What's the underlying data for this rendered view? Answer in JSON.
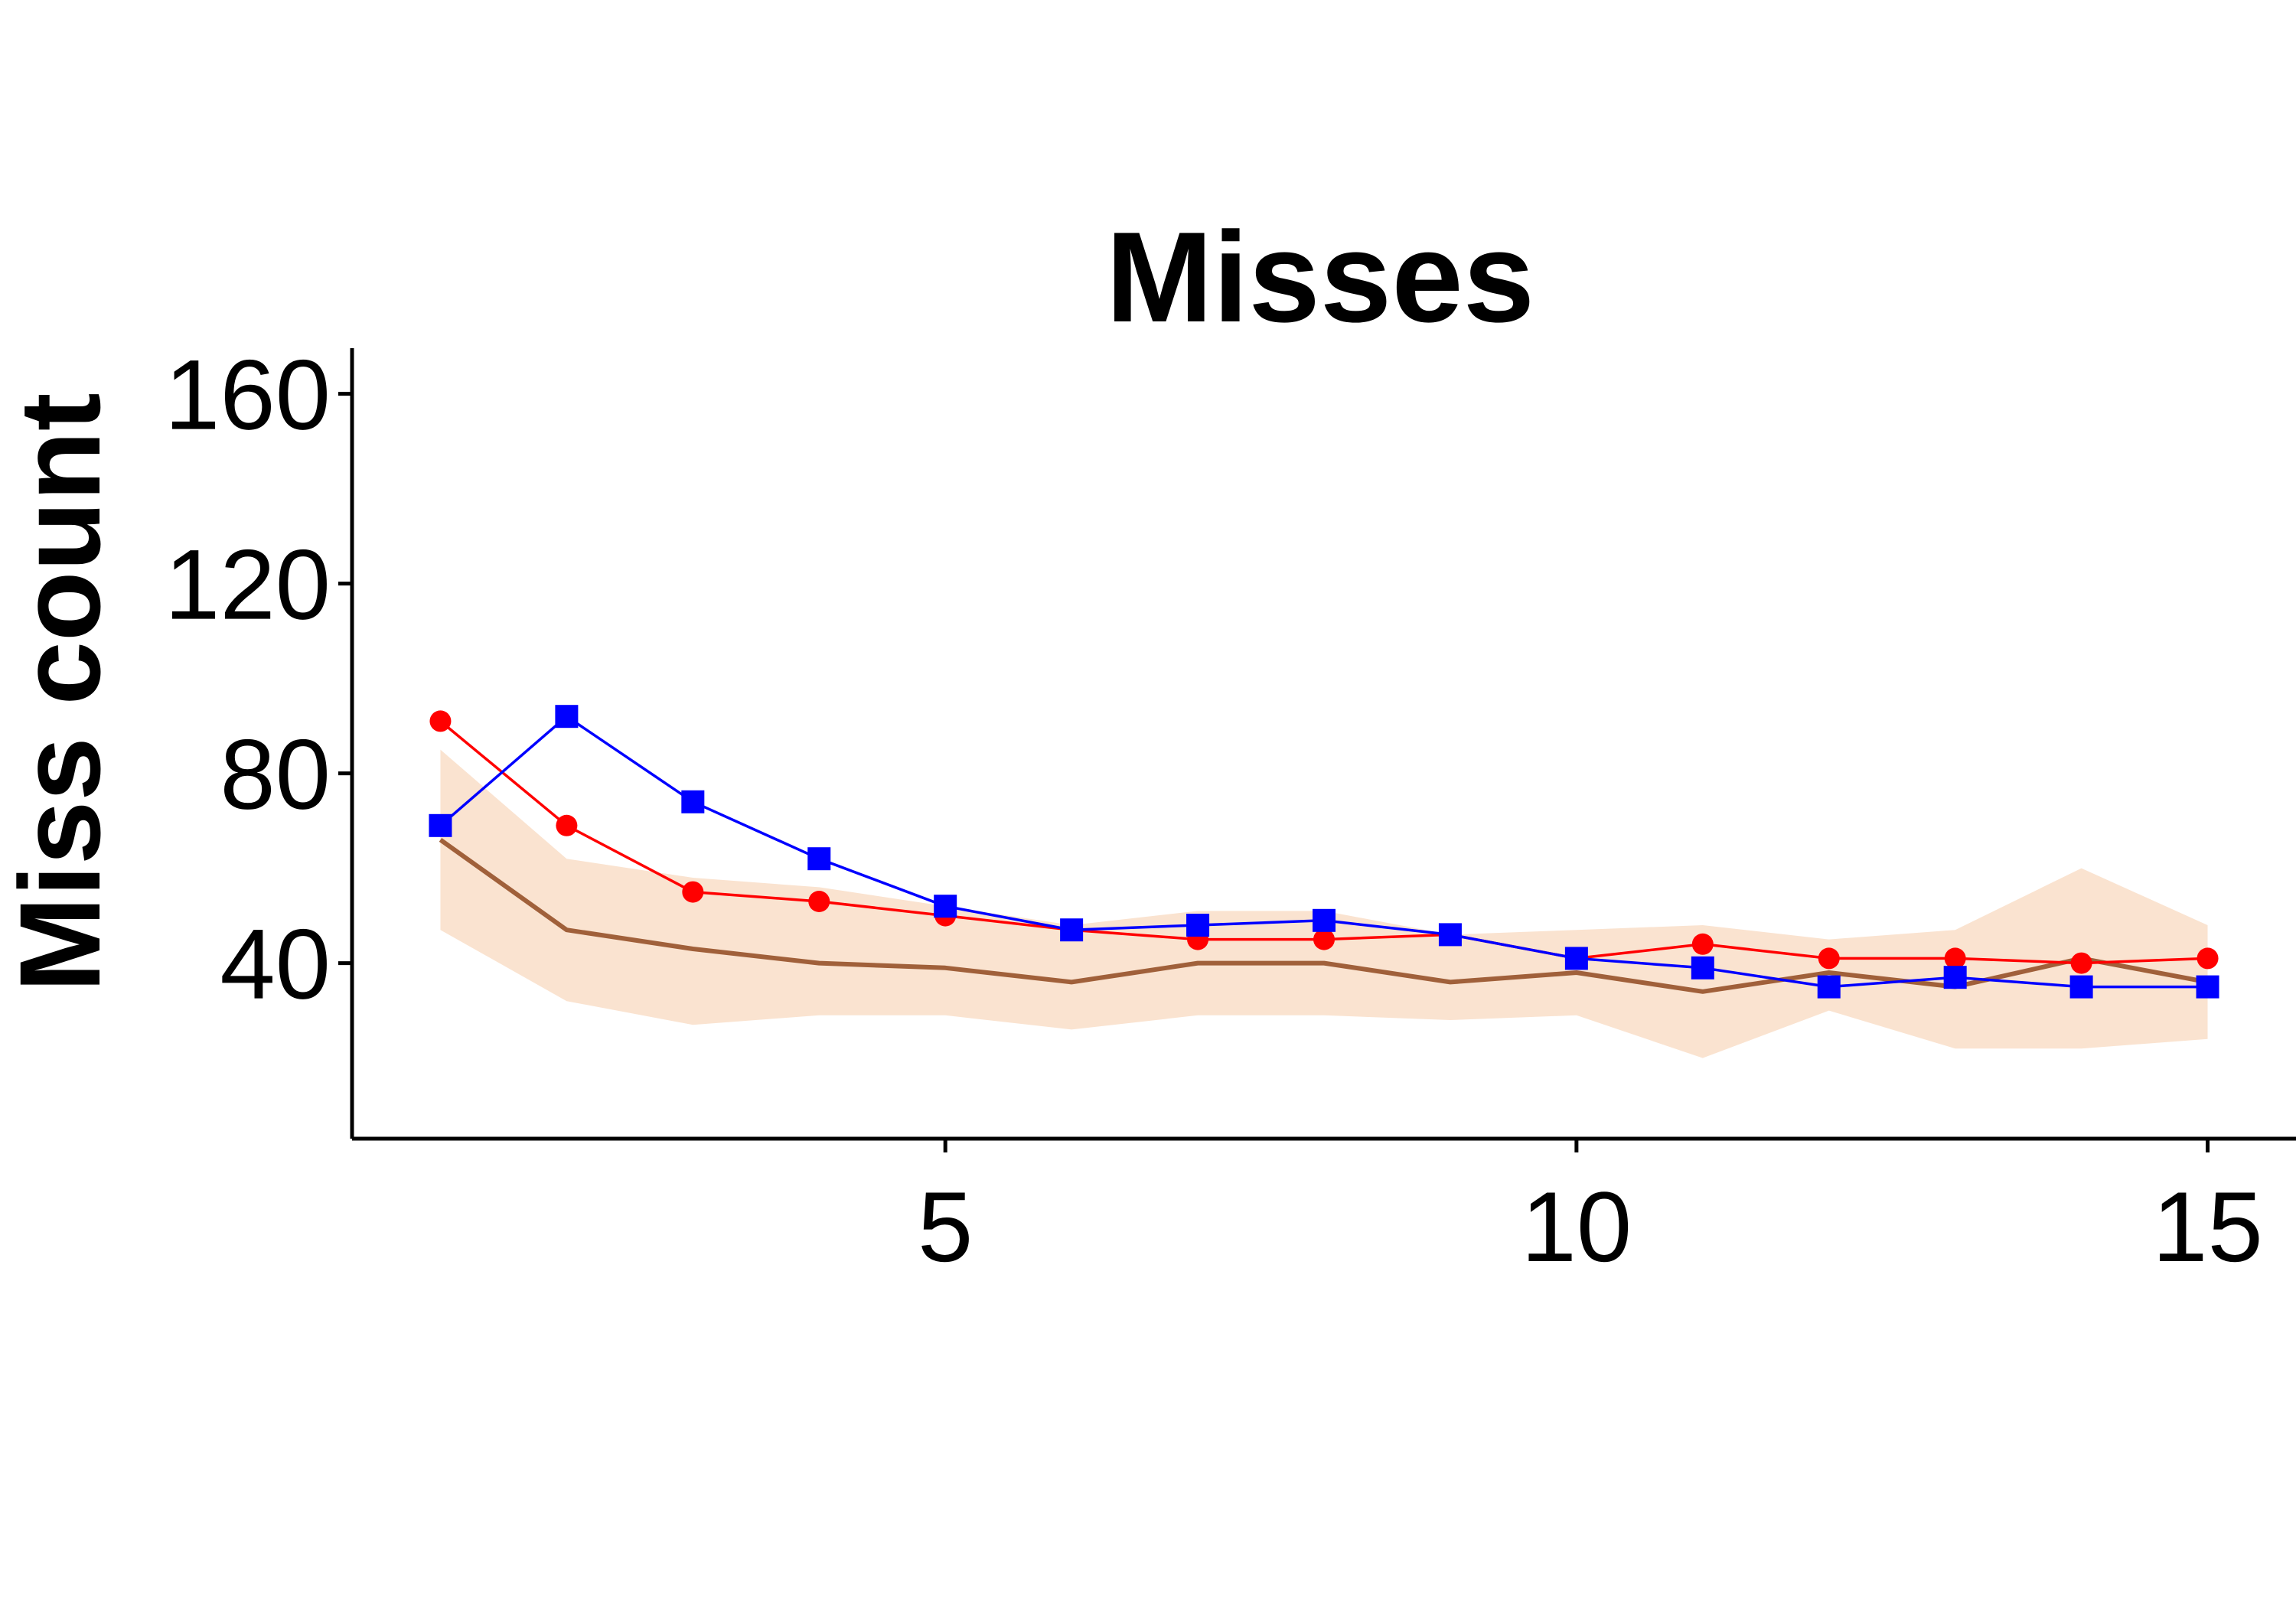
{
  "chart_data": {
    "type": "line",
    "title": "Misses",
    "xlabel": "",
    "ylabel": "Miss count",
    "xlim": [
      0.3,
      15.7
    ],
    "ylim": [
      3,
      168
    ],
    "xticks": [
      5,
      10,
      15
    ],
    "yticks": [
      40,
      80,
      120,
      160
    ],
    "grid": false,
    "legend": "none",
    "x": [
      1,
      2,
      3,
      4,
      5,
      6,
      7,
      8,
      9,
      10,
      11,
      12,
      13,
      14,
      15
    ],
    "band": {
      "color": "#FAE3D0",
      "lower": [
        47,
        32,
        27,
        29,
        29,
        26,
        29,
        29,
        28,
        29,
        20,
        30,
        22,
        22,
        24
      ],
      "upper": [
        85,
        62,
        58,
        56,
        52,
        48,
        51,
        51,
        46,
        47,
        48,
        45,
        47,
        60,
        48
      ]
    },
    "series": [
      {
        "color": "#A0603A",
        "marker": "none",
        "values": [
          66,
          47,
          43,
          40,
          39,
          36,
          40,
          40,
          36,
          38,
          34,
          38,
          35,
          41,
          36
        ]
      },
      {
        "color": "#FF0000",
        "marker": "circle",
        "values": [
          91,
          69,
          55,
          53,
          50,
          47,
          45,
          45,
          46,
          41,
          44,
          41,
          41,
          40,
          41
        ]
      },
      {
        "color": "#0000FF",
        "marker": "square",
        "values": [
          69,
          92,
          74,
          62,
          52,
          47,
          48,
          49,
          46,
          41,
          39,
          35,
          37,
          35,
          35
        ]
      }
    ]
  }
}
